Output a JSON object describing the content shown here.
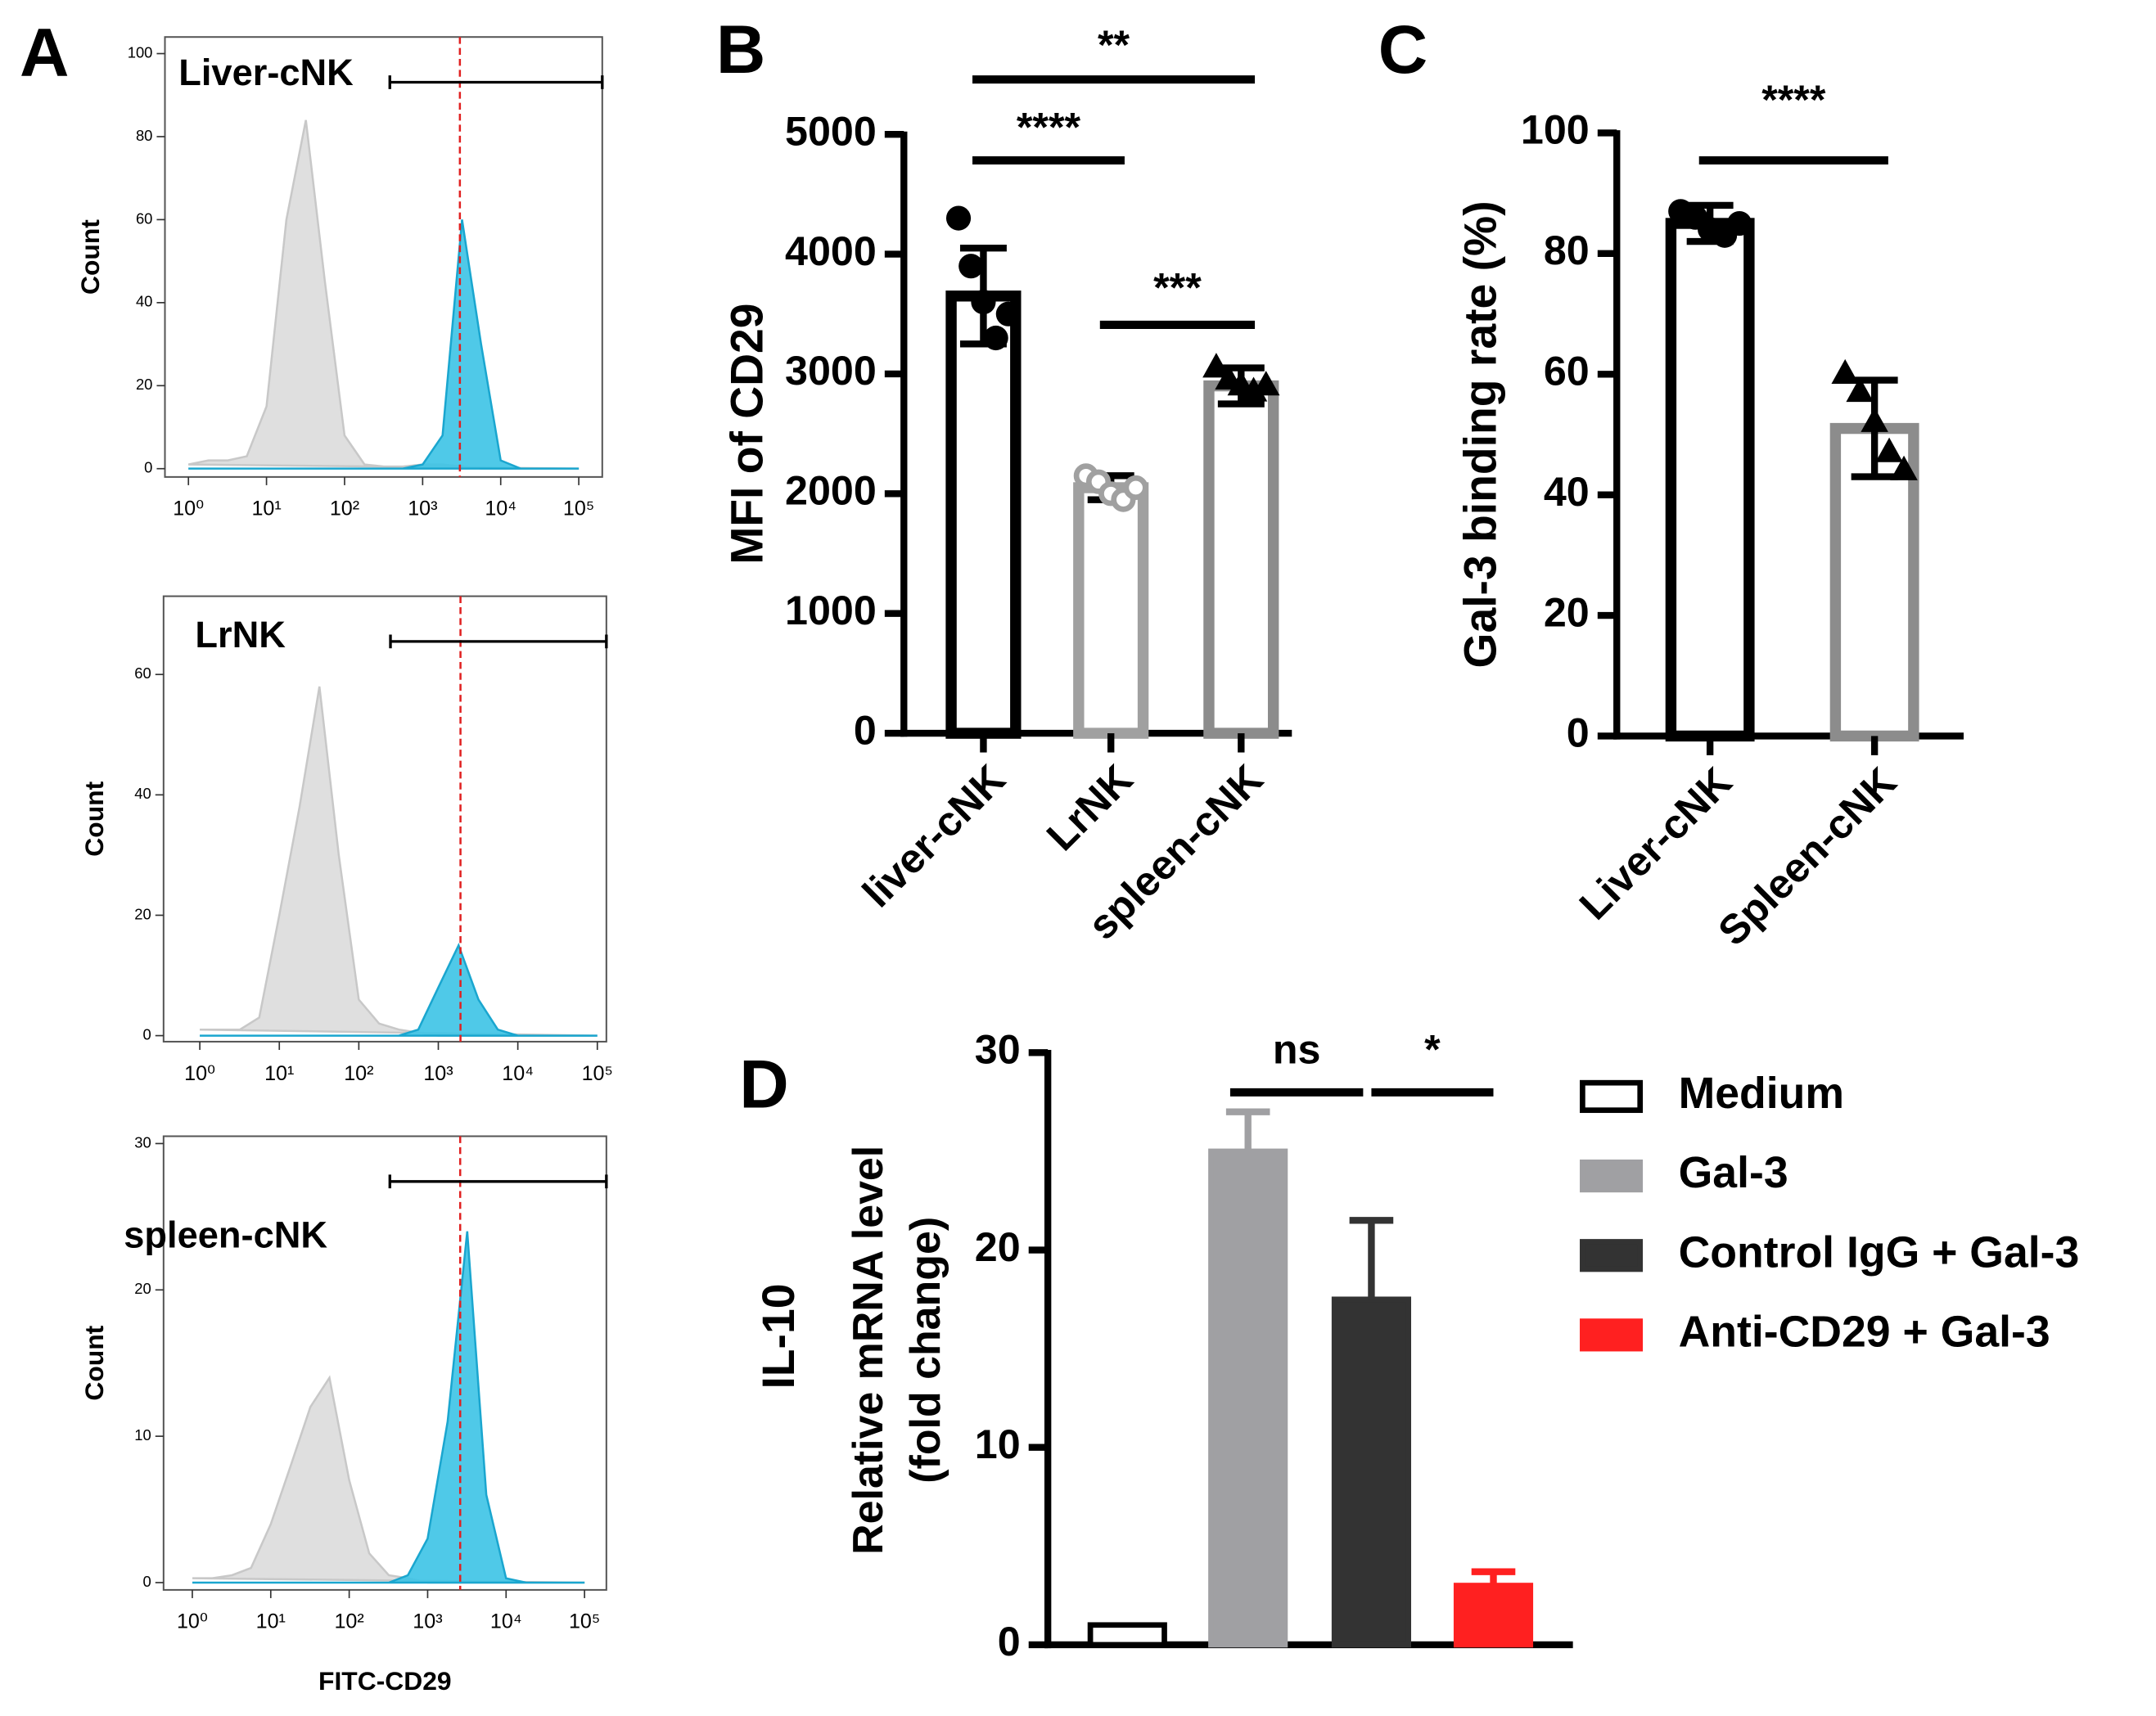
{
  "chart_data": [
    {
      "type": "flow-histogram",
      "panel": "A",
      "label": "Liver-cNK",
      "y_label": "Count",
      "log_x": true,
      "xlim": [
        0.5,
        200000
      ],
      "ylim": [
        -2,
        104
      ],
      "xticks": [
        {
          "value": 1,
          "label": "10⁰"
        },
        {
          "value": 10,
          "label": "10¹"
        },
        {
          "value": 100,
          "label": "10²"
        },
        {
          "value": 1000,
          "label": "10³"
        },
        {
          "value": 10000,
          "label": "10⁴"
        },
        {
          "value": 100000,
          "label": "10⁵"
        }
      ],
      "yticks": [
        0,
        20,
        40,
        60,
        80,
        100
      ],
      "threshold": 3000,
      "gate": [
        380,
        200000
      ],
      "x": [
        1,
        1.8,
        3.2,
        5.6,
        10,
        18,
        32,
        56,
        100,
        180,
        320,
        560,
        1000,
        1800,
        3200,
        5600,
        10000,
        18000,
        32000,
        56000,
        100000
      ],
      "series": [
        {
          "color": "#dcdcdc",
          "values": [
            1,
            2,
            2,
            3,
            15,
            60,
            84,
            45,
            8,
            1,
            0.5,
            0.5,
            1,
            1,
            0.5,
            0,
            0,
            0,
            0,
            0,
            0
          ]
        },
        {
          "color": "#3cc3e6",
          "values": [
            0,
            0,
            0,
            0,
            0,
            0,
            0,
            0,
            0,
            0,
            0,
            0,
            1,
            8,
            60,
            30,
            2,
            0,
            0,
            0,
            0
          ]
        }
      ]
    },
    {
      "type": "flow-histogram",
      "label": "LrNK",
      "y_label": "Count",
      "log_x": true,
      "xlim": [
        0.35,
        130000
      ],
      "ylim": [
        -1,
        73
      ],
      "xticks": [
        {
          "value": 1,
          "label": "10⁰"
        },
        {
          "value": 10,
          "label": "10¹"
        },
        {
          "value": 100,
          "label": "10²"
        },
        {
          "value": 1000,
          "label": "10³"
        },
        {
          "value": 10000,
          "label": "10⁴"
        },
        {
          "value": 100000,
          "label": "10⁵"
        }
      ],
      "yticks": [
        0,
        20,
        40,
        60
      ],
      "threshold": 1900,
      "gate": [
        250,
        130000
      ],
      "x": [
        1,
        1.8,
        3.2,
        5.6,
        10,
        18,
        32,
        56,
        100,
        180,
        320,
        560,
        1000,
        1800,
        3200,
        5600,
        10000,
        18000,
        32000,
        56000,
        100000
      ],
      "series": [
        {
          "color": "#dcdcdc",
          "values": [
            1,
            1,
            1,
            3,
            20,
            38,
            58,
            30,
            6,
            2,
            1,
            0.5,
            0,
            0,
            0,
            0,
            0,
            0,
            0,
            0,
            0
          ]
        },
        {
          "color": "#3cc3e6",
          "values": [
            0,
            0,
            0,
            0,
            0,
            0,
            0,
            0,
            0,
            0,
            0,
            1,
            8,
            15,
            6,
            1,
            0,
            0,
            0,
            0,
            0
          ]
        }
      ]
    },
    {
      "type": "flow-histogram",
      "label": "spleen-cNK",
      "y_label": "Count",
      "x_label": "FITC-CD29",
      "log_x": true,
      "xlim": [
        0.43,
        190000
      ],
      "ylim": [
        -0.5,
        30.5
      ],
      "xticks": [
        {
          "value": 1,
          "label": "10⁰"
        },
        {
          "value": 10,
          "label": "10¹"
        },
        {
          "value": 100,
          "label": "10²"
        },
        {
          "value": 1000,
          "label": "10³"
        },
        {
          "value": 10000,
          "label": "10⁴"
        },
        {
          "value": 100000,
          "label": "10⁵"
        }
      ],
      "yticks": [
        0,
        10,
        20,
        30
      ],
      "threshold": 2600,
      "gate": [
        330,
        190000
      ],
      "x": [
        1,
        1.8,
        3.2,
        5.6,
        10,
        18,
        32,
        56,
        100,
        180,
        320,
        560,
        1000,
        1800,
        3200,
        5600,
        10000,
        18000,
        32000,
        56000,
        100000
      ],
      "series": [
        {
          "color": "#dcdcdc",
          "values": [
            0.3,
            0.3,
            0.5,
            1,
            4,
            8,
            12,
            14,
            7,
            2,
            0.5,
            0.3,
            0,
            0,
            0,
            0,
            0,
            0,
            0,
            0,
            0
          ]
        },
        {
          "color": "#3cc3e6",
          "values": [
            0,
            0,
            0,
            0,
            0,
            0,
            0,
            0,
            0,
            0,
            0,
            0.5,
            3,
            11,
            24,
            6,
            0.3,
            0,
            0,
            0,
            0
          ]
        }
      ]
    },
    {
      "type": "bar-dots",
      "panel": "B",
      "y_label": "MFI of CD29",
      "categories": [
        "liver-cNK",
        "LrNK",
        "spleen-cNK"
      ],
      "values": [
        3650,
        2050,
        2900
      ],
      "errors": [
        400,
        100,
        150
      ],
      "colors": [
        "#000000",
        "#a0a0a0",
        "#8c8c8c"
      ],
      "points": [
        [
          4300,
          3900,
          3600,
          3300,
          3500
        ],
        [
          2150,
          2100,
          2000,
          1950,
          2050
        ],
        [
          3050,
          2950,
          2900,
          2850,
          2900
        ]
      ],
      "markers": [
        "circle",
        "circle-open",
        "triangle"
      ],
      "point_colors": [
        "#000000",
        "#a0a0a0",
        "#000000"
      ],
      "ylim": [
        0,
        5000
      ],
      "yticks": [
        0,
        1000,
        2000,
        3000,
        4000,
        5000
      ],
      "annotations": [
        {
          "text": "****",
          "span": [
            0,
            1
          ]
        },
        {
          "text": "***",
          "span": [
            1,
            2
          ]
        },
        {
          "text": "**",
          "span": [
            0,
            2
          ]
        }
      ]
    },
    {
      "type": "bar-dots",
      "panel": "C",
      "y_label": "Gal-3 binding rate (%)",
      "categories": [
        "Liver-cNK",
        "Spleen-cNK"
      ],
      "values": [
        85,
        51
      ],
      "errors": [
        3,
        8
      ],
      "colors": [
        "#000000",
        "#8c8c8c"
      ],
      "points": [
        [
          87,
          86,
          84,
          83,
          85
        ],
        [
          60,
          57,
          52,
          47,
          44
        ]
      ],
      "markers": [
        "circle",
        "triangle"
      ],
      "point_colors": [
        "#000000",
        "#000000"
      ],
      "ylim": [
        0,
        100
      ],
      "yticks": [
        0,
        20,
        40,
        60,
        80,
        100
      ],
      "annotations": [
        {
          "text": "****",
          "span": [
            0,
            1
          ]
        }
      ]
    },
    {
      "type": "bar",
      "panel": "D",
      "title": "IL-10",
      "y_label": [
        "Relative mRNA level",
        "(fold change)"
      ],
      "series": [
        {
          "name": "Medium",
          "color": "#ffffff",
          "values": [
            1
          ],
          "errors": [
            0
          ]
        },
        {
          "name": "Gal-3",
          "color": "#a0a0a3",
          "values": [
            25
          ],
          "errors": [
            2
          ]
        },
        {
          "name": "Control  IgG + Gal-3",
          "color": "#333333",
          "values": [
            17.5
          ],
          "errors": [
            4
          ]
        },
        {
          "name": "Anti-CD29 + Gal-3",
          "color": "#ff2020",
          "values": [
            3
          ],
          "errors": [
            0.7
          ]
        }
      ],
      "ylim": [
        0,
        30
      ],
      "yticks": [
        0,
        10,
        20,
        30
      ],
      "annotations": [
        {
          "text": "ns",
          "span": [
            1,
            2
          ]
        },
        {
          "text": "*",
          "span": [
            2,
            3
          ]
        }
      ]
    }
  ]
}
